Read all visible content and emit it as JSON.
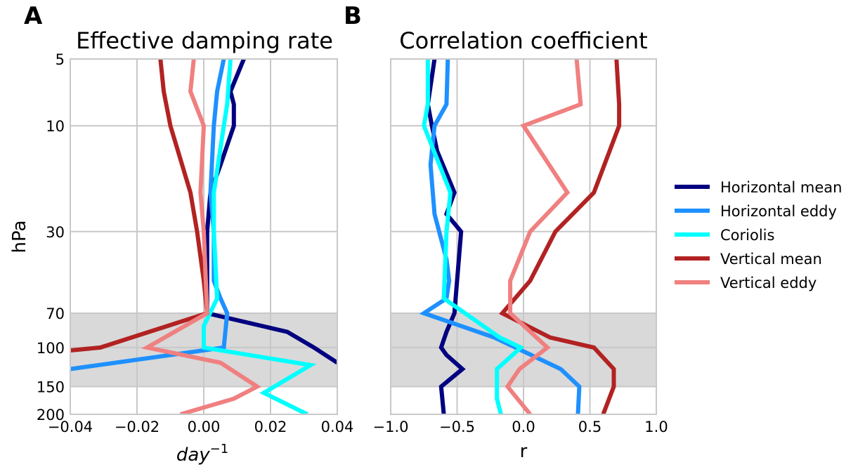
{
  "chart_data": [
    {
      "panel_label": "A",
      "type": "line",
      "title": "Effective damping rate",
      "xlabel": "day",
      "xlabel_exponent": "−1",
      "ylabel": "hPa",
      "xlim": [
        -0.04,
        0.04
      ],
      "x_ticks": [
        -0.04,
        -0.02,
        0.0,
        0.02,
        0.04
      ],
      "x_tick_labels": [
        "−0.04",
        "−0.02",
        "0.00",
        "0.02",
        "0.04"
      ],
      "y_scale": "log",
      "y_inverted": true,
      "ylim": [
        200,
        5
      ],
      "y_ticks": [
        5,
        10,
        30,
        70,
        100,
        150,
        200
      ],
      "y_tick_labels": [
        "5",
        "10",
        "30",
        "70",
        "100",
        "150",
        "200"
      ],
      "grid": true,
      "shaded_band": [
        70,
        150
      ],
      "series": [
        {
          "name": "Horizontal mean",
          "color": "#000080",
          "points": [
            [
              0.012,
              5
            ],
            [
              0.008,
              7
            ],
            [
              0.009,
              8
            ],
            [
              0.009,
              10
            ],
            [
              0.005,
              15
            ],
            [
              0.002,
              20
            ],
            [
              0.001,
              30
            ],
            [
              0.001,
              60
            ],
            [
              0.001,
              70
            ],
            [
              0.025,
              85
            ],
            [
              0.033,
              100
            ],
            [
              0.04,
              117
            ]
          ]
        },
        {
          "name": "Horizontal eddy",
          "color": "#1e90ff",
          "points": [
            [
              0.006,
              5
            ],
            [
              0.004,
              7
            ],
            [
              0.003,
              10
            ],
            [
              0.002,
              20
            ],
            [
              0.003,
              30
            ],
            [
              0.003,
              50
            ],
            [
              0.005,
              60
            ],
            [
              0.007,
              70
            ],
            [
              0.006,
              100
            ],
            [
              -0.04,
              125
            ]
          ]
        },
        {
          "name": "Coriolis",
          "color": "#00ffff",
          "points": [
            [
              0.008,
              5
            ],
            [
              0.007,
              8
            ],
            [
              0.006,
              10
            ],
            [
              0.003,
              20
            ],
            [
              0.003,
              30
            ],
            [
              0.004,
              60
            ],
            [
              0.0,
              80
            ],
            [
              0.0,
              100
            ],
            [
              0.032,
              120
            ],
            [
              0.018,
              160
            ],
            [
              0.031,
              200
            ]
          ]
        },
        {
          "name": "Vertical mean",
          "color": "#b22222",
          "points": [
            [
              -0.013,
              5
            ],
            [
              -0.012,
              7
            ],
            [
              -0.01,
              10
            ],
            [
              -0.004,
              20
            ],
            [
              -0.002,
              30
            ],
            [
              0.0,
              50
            ],
            [
              0.001,
              70
            ],
            [
              -0.031,
              100
            ],
            [
              -0.04,
              103
            ]
          ]
        },
        {
          "name": "Vertical eddy",
          "color": "#f08080",
          "points": [
            [
              -0.003,
              5
            ],
            [
              -0.004,
              7
            ],
            [
              0.0,
              10
            ],
            [
              -0.001,
              20
            ],
            [
              0.0,
              30
            ],
            [
              0.001,
              70
            ],
            [
              -0.017,
              100
            ],
            [
              0.005,
              117
            ],
            [
              0.016,
              150
            ],
            [
              0.009,
              170
            ],
            [
              -0.007,
              200
            ]
          ]
        }
      ]
    },
    {
      "panel_label": "B",
      "type": "line",
      "title": "Correlation coefficient",
      "xlabel": "r",
      "ylabel": "",
      "xlim": [
        -1.0,
        1.0
      ],
      "x_ticks": [
        -1.0,
        -0.5,
        0.0,
        0.5,
        1.0
      ],
      "x_tick_labels": [
        "−1.0",
        "−0.5",
        "0.0",
        "0.5",
        "1.0"
      ],
      "y_scale": "log",
      "y_inverted": true,
      "ylim": [
        200,
        5
      ],
      "y_ticks": [
        5,
        10,
        30,
        70,
        100,
        150,
        200
      ],
      "grid": true,
      "shaded_band": [
        70,
        150
      ],
      "series": [
        {
          "name": "Horizontal mean",
          "color": "#000080",
          "points": [
            [
              -0.67,
              5
            ],
            [
              -0.72,
              8
            ],
            [
              -0.69,
              10
            ],
            [
              -0.65,
              13
            ],
            [
              -0.52,
              20
            ],
            [
              -0.58,
              25
            ],
            [
              -0.47,
              30
            ],
            [
              -0.52,
              70
            ],
            [
              -0.58,
              85
            ],
            [
              -0.62,
              100
            ],
            [
              -0.58,
              108
            ],
            [
              -0.46,
              125
            ],
            [
              -0.62,
              150
            ],
            [
              -0.6,
              200
            ]
          ]
        },
        {
          "name": "Horizontal eddy",
          "color": "#1e90ff",
          "points": [
            [
              -0.57,
              5
            ],
            [
              -0.58,
              8
            ],
            [
              -0.67,
              10
            ],
            [
              -0.7,
              15
            ],
            [
              -0.67,
              25
            ],
            [
              -0.58,
              40
            ],
            [
              -0.56,
              50
            ],
            [
              -0.58,
              60
            ],
            [
              -0.75,
              70
            ],
            [
              -0.22,
              90
            ],
            [
              0.28,
              125
            ],
            [
              0.42,
              150
            ],
            [
              0.41,
              200
            ]
          ]
        },
        {
          "name": "Coriolis",
          "color": "#00ffff",
          "points": [
            [
              -0.72,
              5
            ],
            [
              -0.72,
              8
            ],
            [
              -0.75,
              10
            ],
            [
              -0.55,
              20
            ],
            [
              -0.58,
              30
            ],
            [
              -0.6,
              60
            ],
            [
              -0.18,
              90
            ],
            [
              -0.02,
              100
            ],
            [
              -0.2,
              125
            ],
            [
              -0.2,
              170
            ],
            [
              -0.17,
              200
            ]
          ]
        },
        {
          "name": "Vertical mean",
          "color": "#b22222",
          "points": [
            [
              0.7,
              5
            ],
            [
              0.72,
              8
            ],
            [
              0.72,
              10
            ],
            [
              0.53,
              20
            ],
            [
              0.24,
              30
            ],
            [
              0.05,
              50
            ],
            [
              -0.16,
              70
            ],
            [
              0.2,
              90
            ],
            [
              0.53,
              100
            ],
            [
              0.68,
              125
            ],
            [
              0.68,
              150
            ],
            [
              0.6,
              200
            ]
          ]
        },
        {
          "name": "Vertical eddy",
          "color": "#f08080",
          "points": [
            [
              0.4,
              5
            ],
            [
              0.43,
              8
            ],
            [
              0.0,
              10
            ],
            [
              0.33,
              20
            ],
            [
              0.05,
              30
            ],
            [
              -0.1,
              50
            ],
            [
              -0.1,
              70
            ],
            [
              0.18,
              100
            ],
            [
              -0.03,
              125
            ],
            [
              -0.12,
              150
            ],
            [
              0.05,
              200
            ]
          ]
        }
      ]
    }
  ],
  "legend": {
    "placement": "right",
    "entries": [
      "Horizontal mean",
      "Horizontal eddy",
      "Coriolis",
      "Vertical mean",
      "Vertical eddy"
    ],
    "colors": [
      "#000080",
      "#1e90ff",
      "#00ffff",
      "#b22222",
      "#f08080"
    ]
  }
}
